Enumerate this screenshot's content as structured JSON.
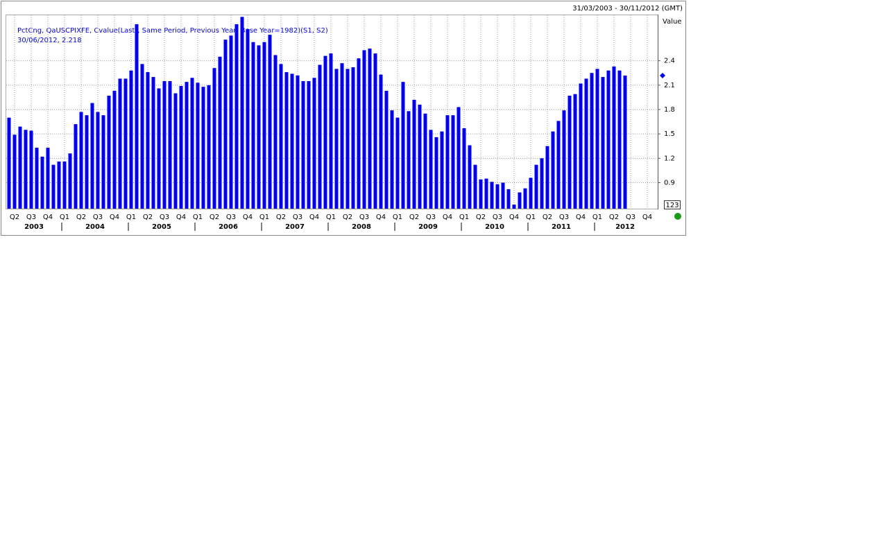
{
  "chart_data": {
    "type": "bar",
    "date_range": "31/03/2003 - 30/11/2012 (GMT)",
    "y_label": "Value",
    "cursor_label": "30/06/2012, 2.218",
    "scale_box": "123",
    "categories": [
      null,
      "Q2",
      null,
      null,
      "Q3",
      null,
      null,
      "Q4",
      null,
      null,
      "Q1",
      null,
      null,
      "Q2",
      null,
      null,
      "Q3",
      null,
      null,
      "Q4",
      null,
      null,
      "Q1",
      null,
      null,
      "Q2",
      null,
      null,
      "Q3",
      null,
      null,
      "Q4",
      null,
      null,
      "Q1",
      null,
      null,
      "Q2",
      null,
      null,
      "Q3",
      null,
      null,
      "Q4",
      null,
      null,
      "Q1",
      null,
      null,
      "Q2",
      null,
      null,
      "Q3",
      null,
      null,
      "Q4",
      null,
      null,
      "Q1",
      null,
      null,
      "Q2",
      null,
      null,
      "Q3",
      null,
      null,
      "Q4",
      null,
      null,
      "Q1",
      null,
      null,
      "Q2",
      null,
      null,
      "Q3",
      null,
      null,
      "Q4",
      null,
      null,
      "Q1",
      null,
      null,
      "Q2",
      null,
      null,
      "Q3",
      null,
      null,
      "Q4",
      null,
      null,
      "Q1",
      null,
      null,
      "Q2",
      null,
      null,
      "Q3",
      null,
      null,
      "Q4",
      null,
      null,
      "Q1",
      null,
      null,
      "Q2",
      null,
      null,
      "Q3",
      null,
      null,
      "Q4",
      null
    ],
    "years": [
      "2003",
      "2004",
      "2005",
      "2006",
      "2007",
      "2008",
      "2009",
      "2010",
      "2011",
      "2012"
    ],
    "series": [
      {
        "name": "PctCng, QaUSCPIXFE, Cvalue(Last), Same Period, Previous Year, Base Year=1982)(S1, S2)",
        "color": "#0000ff",
        "values": [
          1.7,
          1.49,
          1.59,
          1.55,
          1.54,
          1.33,
          1.22,
          1.33,
          1.12,
          1.16,
          1.16,
          1.26,
          1.62,
          1.77,
          1.73,
          1.88,
          1.77,
          1.73,
          1.97,
          2.03,
          2.18,
          2.18,
          2.28,
          2.85,
          2.36,
          2.26,
          2.2,
          2.06,
          2.15,
          2.15,
          2.0,
          2.09,
          2.14,
          2.19,
          2.13,
          2.08,
          2.1,
          2.31,
          2.45,
          2.66,
          2.71,
          2.85,
          2.94,
          2.79,
          2.63,
          2.59,
          2.63,
          2.72,
          2.47,
          2.36,
          2.26,
          2.24,
          2.22,
          2.15,
          2.15,
          2.19,
          2.35,
          2.46,
          2.49,
          2.3,
          2.37,
          2.3,
          2.32,
          2.43,
          2.53,
          2.55,
          2.49,
          2.23,
          2.03,
          1.79,
          1.7,
          2.14,
          1.78,
          1.92,
          1.86,
          1.75,
          1.55,
          1.46,
          1.53,
          1.73,
          1.73,
          1.83,
          1.57,
          1.36,
          1.12,
          0.94,
          0.95,
          0.91,
          0.88,
          0.9,
          0.82,
          0.63,
          0.78,
          0.83,
          0.96,
          1.12,
          1.2,
          1.35,
          1.53,
          1.66,
          1.79,
          1.97,
          1.99,
          2.12,
          2.18,
          2.25,
          2.3,
          2.2,
          2.28,
          2.33,
          2.28,
          2.218,
          null,
          null,
          null,
          null,
          null
        ]
      }
    ],
    "ylim": [
      0.58,
      2.96
    ],
    "yticks": [
      0.9,
      1.2,
      1.5,
      1.8,
      2.1,
      2.4
    ],
    "grid": true
  }
}
